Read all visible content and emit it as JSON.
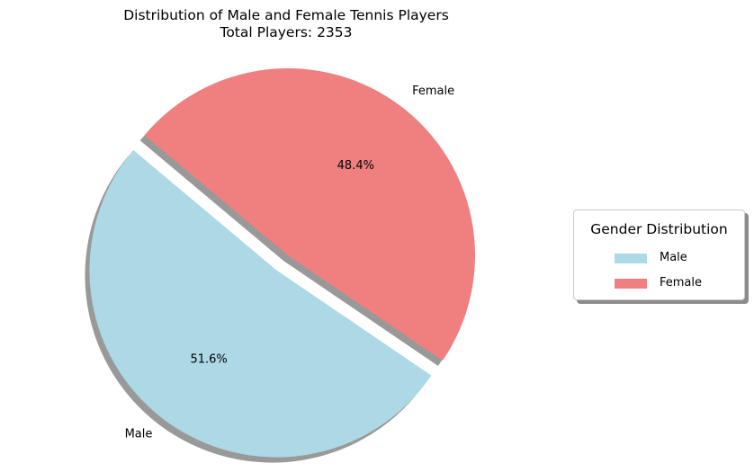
{
  "chart_data": {
    "type": "pie",
    "title": "Distribution of Male and Female Tennis Players",
    "subtitle": "Total Players: 2353",
    "slices": [
      {
        "label": "Male",
        "percent_label": "51.6%",
        "value": 51.6,
        "color": "#add8e6",
        "exploded": true
      },
      {
        "label": "Female",
        "percent_label": "48.4%",
        "value": 48.4,
        "color": "#f08080",
        "exploded": false
      }
    ],
    "shadow": true,
    "legend": {
      "title": "Gender Distribution",
      "placement": "right",
      "entries": [
        "Male",
        "Female"
      ]
    }
  }
}
